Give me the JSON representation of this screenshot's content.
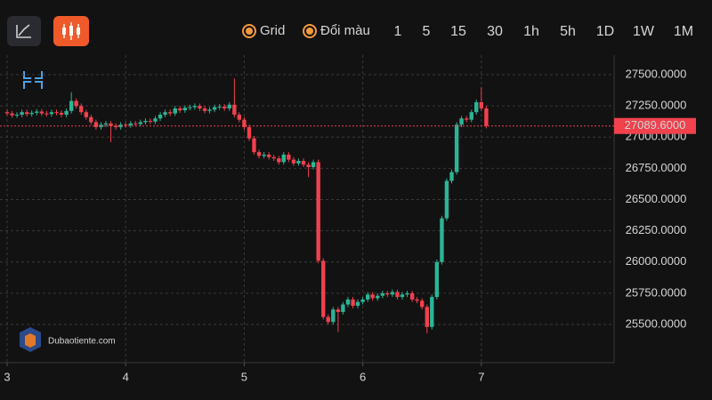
{
  "toolbar": {
    "options": [
      "Grid",
      "Đổi màu"
    ],
    "timeframes": [
      "1",
      "5",
      "15",
      "30",
      "1h",
      "5h",
      "1D",
      "1W",
      "1M"
    ],
    "active": "1h"
  },
  "watermark": "Dubaotiente.com",
  "chart_data": {
    "type": "candlestick",
    "x": [
      3,
      3.042,
      3.083,
      3.125,
      3.167,
      3.208,
      3.25,
      3.292,
      3.333,
      3.375,
      3.417,
      3.458,
      3.5,
      3.542,
      3.583,
      3.625,
      3.667,
      3.708,
      3.75,
      3.792,
      3.833,
      3.875,
      3.917,
      3.958,
      4,
      4.042,
      4.083,
      4.125,
      4.167,
      4.208,
      4.25,
      4.292,
      4.333,
      4.375,
      4.417,
      4.458,
      4.5,
      4.542,
      4.583,
      4.625,
      4.667,
      4.708,
      4.75,
      4.792,
      4.833,
      4.875,
      4.917,
      4.958,
      5,
      5.042,
      5.083,
      5.125,
      5.167,
      5.208,
      5.25,
      5.292,
      5.333,
      5.375,
      5.417,
      5.458,
      5.5,
      5.542,
      5.583,
      5.625,
      5.667,
      5.708,
      5.75,
      5.792,
      5.833,
      5.875,
      5.917,
      5.958,
      6,
      6.042,
      6.083,
      6.125,
      6.167,
      6.208,
      6.25,
      6.292,
      6.333,
      6.375,
      6.417,
      6.458,
      6.5,
      6.542,
      6.583,
      6.625,
      6.667,
      6.708,
      6.75,
      6.792,
      6.833,
      6.875,
      6.917,
      6.958,
      7,
      7.042
    ],
    "open": [
      27200,
      27190,
      27175,
      27180,
      27200,
      27185,
      27195,
      27205,
      27190,
      27185,
      27200,
      27195,
      27180,
      27210,
      27290,
      27250,
      27200,
      27160,
      27120,
      27080,
      27100,
      27110,
      27090,
      27080,
      27100,
      27095,
      27110,
      27105,
      27120,
      27130,
      27125,
      27150,
      27180,
      27200,
      27190,
      27230,
      27215,
      27235,
      27240,
      27250,
      27230,
      27210,
      27220,
      27240,
      27245,
      27230,
      27260,
      27180,
      27140,
      27080,
      26990,
      26880,
      26850,
      26860,
      26840,
      26830,
      26800,
      26860,
      26820,
      26790,
      26810,
      26780,
      26760,
      26800,
      26010,
      25560,
      25520,
      25620,
      25600,
      25660,
      25700,
      25650,
      25680,
      25700,
      25740,
      25710,
      25730,
      25750,
      25740,
      25760,
      25720,
      25740,
      25750,
      25700,
      25690,
      25640,
      25480,
      25720,
      26000,
      26350,
      26650,
      26720,
      27100,
      27150,
      27140,
      27200,
      27280,
      27230
    ],
    "high": [
      27220,
      27210,
      27200,
      27220,
      27220,
      27215,
      27225,
      27225,
      27210,
      27220,
      27220,
      27215,
      27230,
      27360,
      27310,
      27270,
      27220,
      27180,
      27140,
      27120,
      27130,
      27130,
      27110,
      27120,
      27120,
      27130,
      27130,
      27140,
      27150,
      27150,
      27170,
      27200,
      27220,
      27220,
      27250,
      27250,
      27255,
      27260,
      27270,
      27270,
      27250,
      27240,
      27260,
      27265,
      27265,
      27280,
      27470,
      27200,
      27160,
      27100,
      27010,
      26900,
      26880,
      26880,
      26860,
      26850,
      26880,
      26880,
      26840,
      26830,
      26830,
      26800,
      26820,
      26820,
      26030,
      25580,
      25640,
      25640,
      25680,
      25720,
      25720,
      25700,
      25720,
      25760,
      25760,
      25750,
      25770,
      25770,
      25780,
      25780,
      25760,
      25770,
      25770,
      25720,
      25710,
      25660,
      25740,
      26020,
      26370,
      26670,
      26740,
      27120,
      27170,
      27170,
      27220,
      27300,
      27400,
      27250
    ],
    "low": [
      27170,
      27155,
      27155,
      27160,
      27165,
      27165,
      27175,
      27170,
      27165,
      27165,
      27175,
      27160,
      27160,
      27190,
      27230,
      27180,
      27140,
      27100,
      27060,
      27060,
      27080,
      26960,
      27060,
      27060,
      27075,
      27075,
      27085,
      27085,
      27100,
      27105,
      27105,
      27130,
      27160,
      27170,
      27170,
      27195,
      27195,
      27215,
      27220,
      27210,
      27190,
      27190,
      27200,
      27220,
      27210,
      27210,
      27160,
      27120,
      27060,
      26970,
      26860,
      26830,
      26830,
      26820,
      26810,
      26780,
      26780,
      26800,
      26770,
      26770,
      26760,
      26680,
      26740,
      25990,
      25540,
      25500,
      25500,
      25440,
      25580,
      25640,
      25630,
      25630,
      25660,
      25680,
      25690,
      25690,
      25710,
      25720,
      25720,
      25700,
      25700,
      25720,
      25680,
      25670,
      25620,
      25430,
      25460,
      25700,
      25980,
      26330,
      26630,
      26700,
      27080,
      27120,
      27120,
      27180,
      27210,
      27070
    ],
    "close": [
      27190,
      27175,
      27180,
      27200,
      27185,
      27195,
      27205,
      27190,
      27185,
      27200,
      27195,
      27180,
      27210,
      27290,
      27250,
      27200,
      27160,
      27120,
      27080,
      27100,
      27110,
      27090,
      27080,
      27100,
      27095,
      27110,
      27105,
      27120,
      27130,
      27125,
      27150,
      27180,
      27200,
      27190,
      27230,
      27215,
      27235,
      27240,
      27250,
      27230,
      27210,
      27220,
      27240,
      27245,
      27230,
      27260,
      27180,
      27140,
      27080,
      26990,
      26880,
      26850,
      26860,
      26840,
      26830,
      26800,
      26860,
      26820,
      26790,
      26810,
      26780,
      26760,
      26800,
      26010,
      25560,
      25520,
      25620,
      25600,
      25660,
      25700,
      25650,
      25680,
      25700,
      25740,
      25710,
      25730,
      25750,
      25740,
      25760,
      25720,
      25740,
      25750,
      25700,
      25690,
      25640,
      25480,
      25720,
      26000,
      26350,
      26650,
      26720,
      27100,
      27150,
      27140,
      27200,
      27280,
      27230,
      27089.6
    ],
    "up_color": "#2bb596",
    "down_color": "#f0414d",
    "xlim": [
      2.94,
      8.12
    ],
    "xticks": [
      3,
      4,
      5,
      6,
      7
    ],
    "ylim": [
      25194,
      27657
    ],
    "yticks": [
      {
        "value": 25500,
        "label": "25500.0000"
      },
      {
        "value": 25750,
        "label": "25750.0000"
      },
      {
        "value": 26000,
        "label": "26000.0000"
      },
      {
        "value": 26250,
        "label": "26250.0000"
      },
      {
        "value": 26500,
        "label": "26500.0000"
      },
      {
        "value": 26750,
        "label": "26750.0000"
      },
      {
        "value": 27000,
        "label": "27000.0000"
      },
      {
        "value": 27250,
        "label": "27250.0000"
      },
      {
        "value": 27500,
        "label": "27500.0000"
      }
    ],
    "grid": true,
    "last_price": {
      "value": 27089.6,
      "label": "27089.6000"
    }
  }
}
